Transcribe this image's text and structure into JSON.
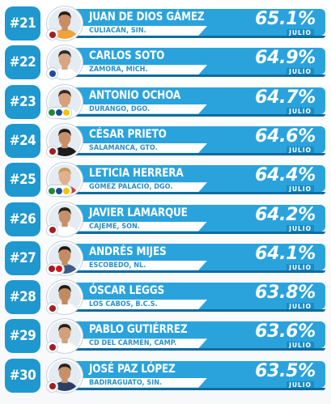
{
  "month_label": "JULIO",
  "rows": [
    {
      "rank": "#21",
      "name": "JUAN DE DIOS GÁMEZ",
      "city": "CULIACÁN, SIN.",
      "pct": "65.1%",
      "party": "morena",
      "shirt": "#f1a33b",
      "skin": "#c98c63",
      "hair": "#2b1d15"
    },
    {
      "rank": "#22",
      "name": "CARLOS SOTO",
      "city": "ZAMORA, MICH.",
      "pct": "64.9%",
      "party": "pan",
      "shirt": "#ffffff",
      "skin": "#d7a57f",
      "hair": "#2a2a2a"
    },
    {
      "rank": "#23",
      "name": "ANTONIO OCHOA",
      "city": "DURANGO, DGO.",
      "pct": "64.7%",
      "party": "pri-pan-prd",
      "shirt": "#ffffff",
      "skin": "#d5a07a",
      "hair": "#3a2a20"
    },
    {
      "rank": "#24",
      "name": "CÉSAR PRIETO",
      "city": "SALAMANCA, GTO.",
      "pct": "64.6%",
      "party": "morena",
      "shirt": "#1d1d1d",
      "skin": "#c89066",
      "hair": "#1f1a17"
    },
    {
      "rank": "#25",
      "name": "LETICIA HERRERA",
      "city": "GÓMEZ PALACIO, DGO.",
      "pct": "64.4%",
      "party": "pri-pan-prd",
      "shirt": "#c2403d",
      "skin": "#e2b08c",
      "hair": "#c79a55"
    },
    {
      "rank": "#26",
      "name": "JAVIER LAMARQUE",
      "city": "CAJEME, SON.",
      "pct": "64.2%",
      "party": "morena",
      "shirt": "#ffffff",
      "skin": "#c6916a",
      "hair": "#2a221d"
    },
    {
      "rank": "#27",
      "name": "ANDRÉS MIJES",
      "city": "ESCOBEDO, NL.",
      "pct": "64.1%",
      "party": "morena-pt",
      "shirt": "#3c5a8a",
      "skin": "#c58c62",
      "hair": "#1e1915"
    },
    {
      "rank": "#28",
      "name": "ÓSCAR LEGGS",
      "city": "LOS CABOS, B.C.S.",
      "pct": "63.8%",
      "party": "morena",
      "shirt": "#ffffff",
      "skin": "#c28a5f",
      "hair": "#231c17"
    },
    {
      "rank": "#29",
      "name": "PABLO GUTIÉRREZ",
      "city": "CD DEL CARMEN, CAMP.",
      "pct": "63.6%",
      "party": "morena",
      "shirt": "#ffffff",
      "skin": "#d3a07a",
      "hair": "#2a1f18"
    },
    {
      "rank": "#30",
      "name": "JOSÉ PAZ LÓPEZ",
      "city": "BADIRAGUATO, SIN.",
      "pct": "63.5%",
      "party": "morena",
      "shirt": "#2a3e66",
      "skin": "#c89066",
      "hair": "#2b231e"
    }
  ],
  "colors": {
    "rank_bg": "#1e98cf",
    "bar": "#2aa3dd",
    "city_text": "#2a8fc4"
  }
}
